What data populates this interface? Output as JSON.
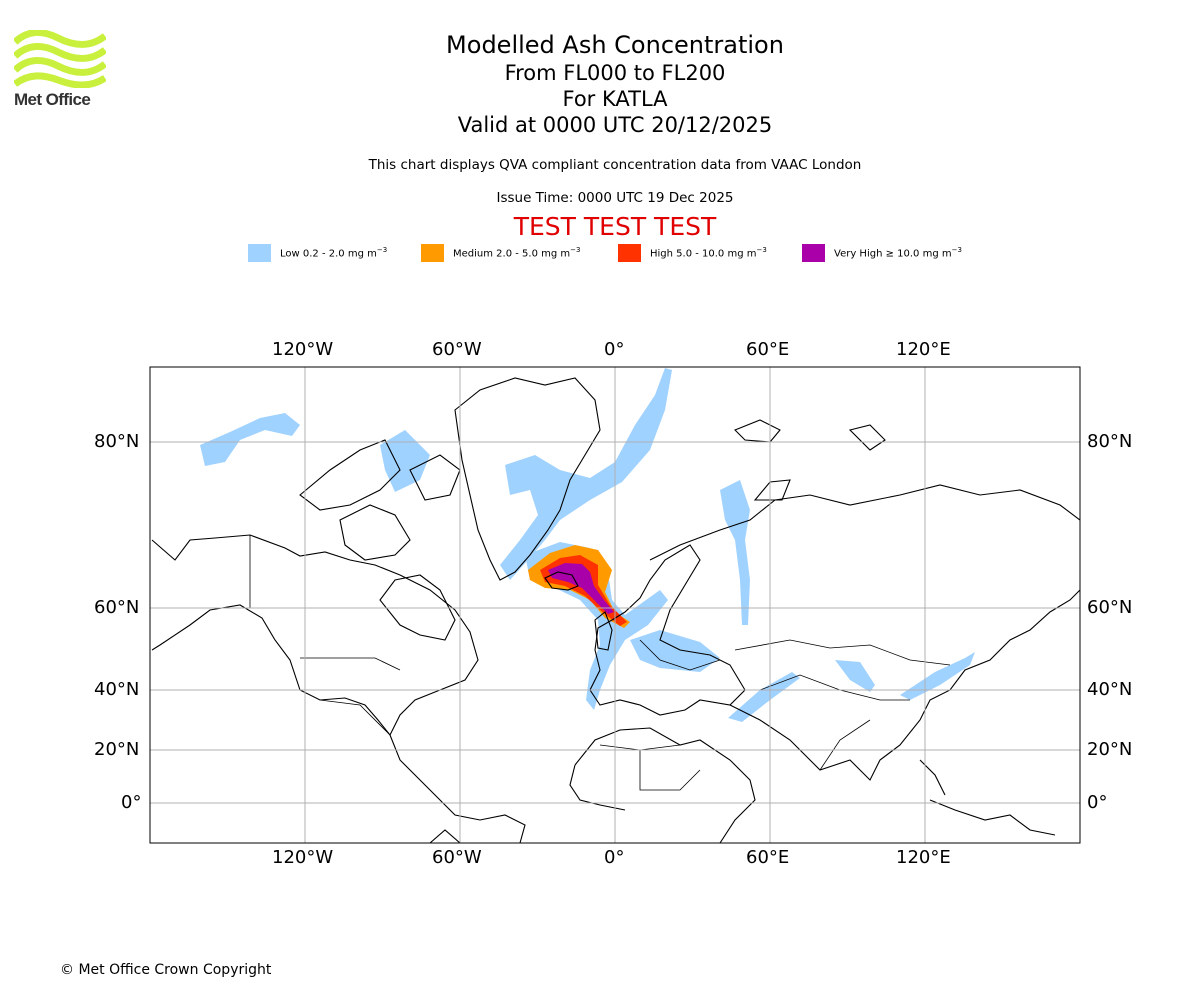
{
  "logo": {
    "text": "Met Office",
    "color": "#c8f03c"
  },
  "title": {
    "line1": "Modelled Ash Concentration",
    "line2": "From FL000 to FL200",
    "line3": "For KATLA",
    "line4": "Valid at 0000 UTC 20/12/2025"
  },
  "description": "This chart displays QVA compliant concentration data from VAAC London",
  "issue_time": "Issue Time: 0000 UTC 19 Dec 2025",
  "test_banner": "TEST TEST TEST",
  "legend": [
    {
      "label": "Low 0.2 - 2.0 mg m",
      "unit_sup": "−3",
      "color": "#a0d2ff"
    },
    {
      "label": "Medium 2.0 - 5.0 mg m",
      "unit_sup": "−3",
      "color": "#ff9b00"
    },
    {
      "label": "High 5.0 - 10.0 mg m",
      "unit_sup": "−3",
      "color": "#ff3200"
    },
    {
      "label": "Very High  ≥  10.0 mg m",
      "unit_sup": "−3",
      "color": "#aa00aa"
    }
  ],
  "map": {
    "longitude_labels": [
      "120°W",
      "60°W",
      "0°",
      "60°E",
      "120°E"
    ],
    "latitude_labels": [
      "80°N",
      "60°N",
      "40°N",
      "20°N",
      "0°"
    ],
    "longitude_values": [
      -120,
      -60,
      0,
      60,
      120
    ],
    "latitude_values": [
      80,
      60,
      40,
      20,
      0
    ],
    "source_volcano": "KATLA"
  },
  "copyright": "© Met Office Crown Copyright"
}
